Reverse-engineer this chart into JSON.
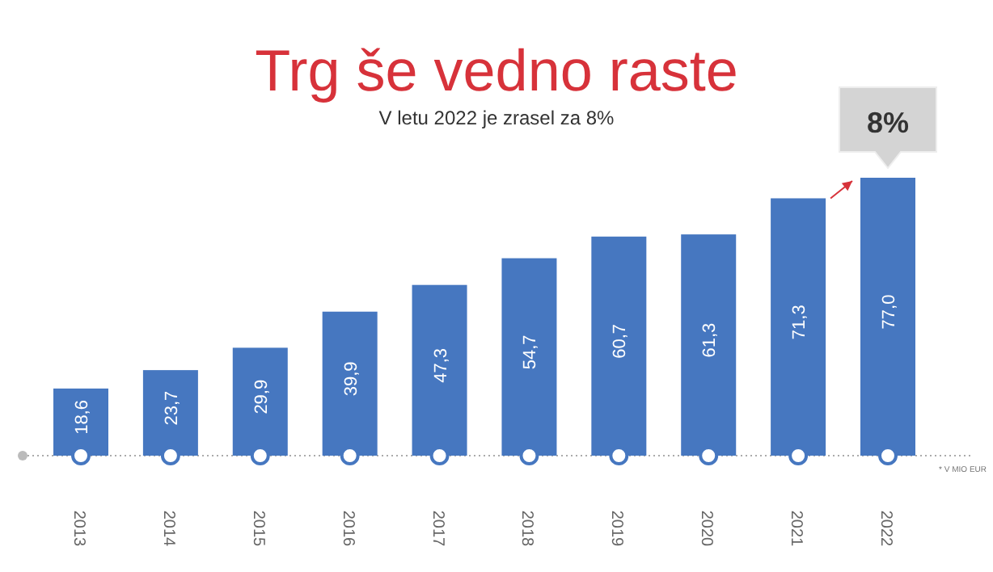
{
  "chart_data": {
    "type": "bar",
    "title": "Trg še vedno raste",
    "subtitle": "V letu 2022 je zrasel za 8%",
    "categories": [
      "2013",
      "2014",
      "2015",
      "2016",
      "2017",
      "2018",
      "2019",
      "2020",
      "2021",
      "2022"
    ],
    "values": [
      18.6,
      23.7,
      29.9,
      39.9,
      47.3,
      54.7,
      60.7,
      61.3,
      71.3,
      77.0
    ],
    "value_labels": [
      "18,6",
      "23,7",
      "29,9",
      "39,9",
      "47,3",
      "54,7",
      "60,7",
      "61,3",
      "71,3",
      "77,0"
    ],
    "color": "#4677c0",
    "relative": false,
    "ylim": [
      0,
      77
    ],
    "tick_labels": "x",
    "annotations": [
      {
        "text": "8%",
        "x": "2022",
        "y": 77.0
      },
      "* V MIO EUR"
    ]
  }
}
